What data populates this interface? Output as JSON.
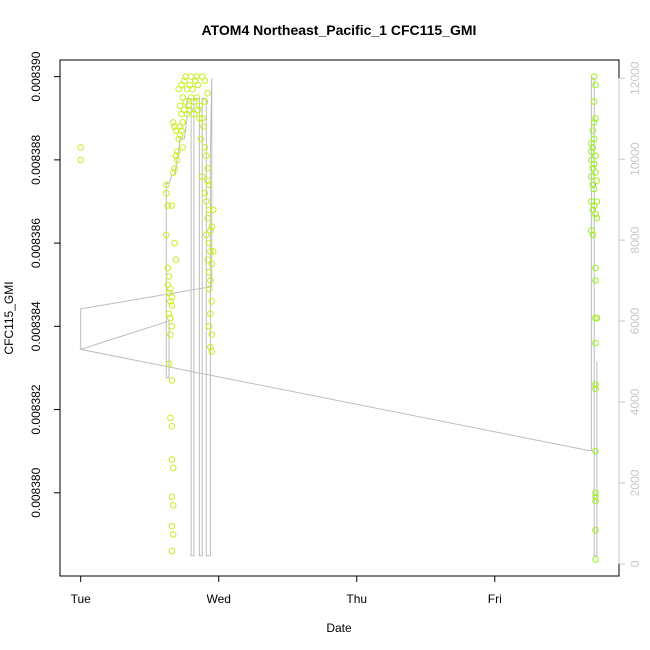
{
  "chart_data": {
    "type": "scatter",
    "title": "ATOM4 Northeast_Pacific_1 CFC115_GMI",
    "xlabel": "Date",
    "ylabel": "CFC115_GMI",
    "x_ticks": [
      "Tue",
      "Wed",
      "Thu",
      "Fri"
    ],
    "x_range_days": [
      -0.15,
      3.9
    ],
    "ylim": [
      0.008378,
      0.0083904
    ],
    "y_ticks": [
      0.00838,
      0.008382,
      0.008384,
      0.008386,
      0.008388,
      0.00839
    ],
    "y_right_lim": [
      -300,
      12450
    ],
    "y_right_ticks": [
      0,
      2000,
      4000,
      6000,
      8000,
      10000,
      12000
    ],
    "grid": false,
    "legend": "none",
    "colors": {
      "points_early": "#c6f01e",
      "points_late": "#9cf01e",
      "line": "#bdbdbd",
      "axis": "#000000",
      "axis_right": "#c8c8c8"
    },
    "series": [
      {
        "type": "scatter",
        "points": [
          [
            0.0,
            0.0083883
          ],
          [
            0.0,
            0.008388
          ],
          [
            0.62,
            0.0083874
          ],
          [
            0.62,
            0.0083872
          ],
          [
            0.63,
            0.0083869
          ],
          [
            0.62,
            0.0083862
          ],
          [
            0.63,
            0.0083854
          ],
          [
            0.64,
            0.0083852
          ],
          [
            0.63,
            0.008385
          ],
          [
            0.65,
            0.0083849
          ],
          [
            0.64,
            0.0083848
          ],
          [
            0.66,
            0.0083847
          ],
          [
            0.65,
            0.0083846
          ],
          [
            0.66,
            0.0083845
          ],
          [
            0.64,
            0.0083843
          ],
          [
            0.65,
            0.0083842
          ],
          [
            0.66,
            0.008384
          ],
          [
            0.65,
            0.0083838
          ],
          [
            0.64,
            0.0083831
          ],
          [
            0.66,
            0.0083827
          ],
          [
            0.65,
            0.0083818
          ],
          [
            0.66,
            0.0083816
          ],
          [
            0.66,
            0.0083808
          ],
          [
            0.67,
            0.0083806
          ],
          [
            0.66,
            0.0083799
          ],
          [
            0.67,
            0.0083797
          ],
          [
            0.66,
            0.0083792
          ],
          [
            0.67,
            0.008379
          ],
          [
            0.66,
            0.0083786
          ],
          [
            0.67,
            0.0083877
          ],
          [
            0.68,
            0.0083878
          ],
          [
            0.69,
            0.0083881
          ],
          [
            0.7,
            0.008388
          ],
          [
            0.7,
            0.0083882
          ],
          [
            0.71,
            0.0083885
          ],
          [
            0.72,
            0.0083886
          ],
          [
            0.72,
            0.0083888
          ],
          [
            0.73,
            0.0083887
          ],
          [
            0.74,
            0.0083889
          ],
          [
            0.74,
            0.0083883
          ],
          [
            0.67,
            0.0083889
          ],
          [
            0.68,
            0.0083888
          ],
          [
            0.69,
            0.0083887
          ],
          [
            0.66,
            0.0083869
          ],
          [
            0.68,
            0.008386
          ],
          [
            0.69,
            0.0083856
          ],
          [
            0.71,
            0.0083897
          ],
          [
            0.73,
            0.0083898
          ],
          [
            0.75,
            0.0083899
          ],
          [
            0.77,
            0.0083897
          ],
          [
            0.79,
            0.0083898
          ],
          [
            0.81,
            0.0083897
          ],
          [
            0.83,
            0.0083899
          ],
          [
            0.85,
            0.0083898
          ],
          [
            0.72,
            0.0083893
          ],
          [
            0.74,
            0.0083895
          ],
          [
            0.76,
            0.0083894
          ],
          [
            0.78,
            0.0083893
          ],
          [
            0.8,
            0.0083895
          ],
          [
            0.82,
            0.0083894
          ],
          [
            0.84,
            0.0083895
          ],
          [
            0.86,
            0.0083893
          ],
          [
            0.73,
            0.0083891
          ],
          [
            0.75,
            0.0083892
          ],
          [
            0.77,
            0.0083891
          ],
          [
            0.79,
            0.0083892
          ],
          [
            0.82,
            0.0083891
          ],
          [
            0.85,
            0.0083892
          ],
          [
            0.88,
            0.008389
          ],
          [
            0.9,
            0.0083894
          ],
          [
            0.76,
            0.00839
          ],
          [
            0.8,
            0.00839
          ],
          [
            0.84,
            0.00839
          ],
          [
            0.88,
            0.00839
          ],
          [
            0.9,
            0.0083899
          ],
          [
            0.92,
            0.0083896
          ],
          [
            0.86,
            0.008389
          ],
          [
            0.89,
            0.0083888
          ],
          [
            0.87,
            0.0083885
          ],
          [
            0.9,
            0.0083883
          ],
          [
            0.91,
            0.0083881
          ],
          [
            0.92,
            0.0083878
          ],
          [
            0.88,
            0.0083876
          ],
          [
            0.92,
            0.0083875
          ],
          [
            0.93,
            0.0083874
          ],
          [
            0.9,
            0.0083872
          ],
          [
            0.91,
            0.008387
          ],
          [
            0.93,
            0.0083868
          ],
          [
            0.92,
            0.0083866
          ],
          [
            0.94,
            0.0083863
          ],
          [
            0.91,
            0.0083862
          ],
          [
            0.93,
            0.008386
          ],
          [
            0.94,
            0.0083858
          ],
          [
            0.92,
            0.0083856
          ],
          [
            0.95,
            0.0083855
          ],
          [
            0.93,
            0.0083853
          ],
          [
            0.94,
            0.0083851
          ],
          [
            0.93,
            0.0083849
          ],
          [
            0.95,
            0.0083846
          ],
          [
            0.94,
            0.0083843
          ],
          [
            0.93,
            0.008384
          ],
          [
            0.95,
            0.0083838
          ],
          [
            0.94,
            0.0083835
          ],
          [
            0.95,
            0.0083834
          ],
          [
            0.96,
            0.0083868
          ],
          [
            0.95,
            0.0083864
          ],
          [
            0.96,
            0.0083858
          ]
        ]
      },
      {
        "type": "scatter",
        "points": [
          [
            3.72,
            0.00839
          ],
          [
            3.73,
            0.0083898
          ],
          [
            3.72,
            0.0083894
          ],
          [
            3.73,
            0.008389
          ],
          [
            3.72,
            0.0083889
          ],
          [
            3.71,
            0.0083887
          ],
          [
            3.72,
            0.0083885
          ],
          [
            3.7,
            0.0083884
          ],
          [
            3.71,
            0.0083883
          ],
          [
            3.7,
            0.0083882
          ],
          [
            3.73,
            0.0083881
          ],
          [
            3.7,
            0.008388
          ],
          [
            3.72,
            0.0083879
          ],
          [
            3.71,
            0.0083878
          ],
          [
            3.73,
            0.0083877
          ],
          [
            3.7,
            0.0083876
          ],
          [
            3.74,
            0.0083875
          ],
          [
            3.71,
            0.0083874
          ],
          [
            3.72,
            0.0083873
          ],
          [
            3.7,
            0.008387
          ],
          [
            3.72,
            0.0083869
          ],
          [
            3.74,
            0.008387
          ],
          [
            3.71,
            0.0083868
          ],
          [
            3.73,
            0.0083867
          ],
          [
            3.74,
            0.0083866
          ],
          [
            3.7,
            0.0083863
          ],
          [
            3.71,
            0.0083862
          ],
          [
            3.73,
            0.0083854
          ],
          [
            3.73,
            0.0083851
          ],
          [
            3.73,
            0.0083842
          ],
          [
            3.74,
            0.0083842
          ],
          [
            3.73,
            0.0083836
          ],
          [
            3.73,
            0.0083826
          ],
          [
            3.73,
            0.0083825
          ],
          [
            3.73,
            0.008381
          ],
          [
            3.73,
            0.00838
          ],
          [
            3.73,
            0.0083799
          ],
          [
            3.73,
            0.0083798
          ],
          [
            3.73,
            0.0083791
          ],
          [
            3.73,
            0.0083784
          ]
        ]
      },
      {
        "type": "line",
        "points": [
          [
            0.0,
            5300
          ],
          [
            0.0,
            6300
          ],
          [
            0.95,
            6850
          ],
          [
            0.95,
            12000
          ],
          [
            0.94,
            10200
          ],
          [
            0.94,
            200
          ],
          [
            0.91,
            200
          ],
          [
            0.91,
            11500
          ],
          [
            0.88,
            11500
          ],
          [
            0.88,
            200
          ],
          [
            0.86,
            200
          ],
          [
            0.86,
            11500
          ],
          [
            0.82,
            11500
          ],
          [
            0.82,
            200
          ],
          [
            0.8,
            200
          ],
          [
            0.8,
            11500
          ],
          [
            0.77,
            11500
          ],
          [
            0.77,
            11000
          ],
          [
            0.75,
            10500
          ],
          [
            0.72,
            10500
          ],
          [
            0.7,
            10000
          ],
          [
            0.68,
            9600
          ],
          [
            0.66,
            9600
          ],
          [
            0.64,
            9400
          ],
          [
            0.62,
            9400
          ],
          [
            0.62,
            4600
          ],
          [
            0.64,
            4600
          ],
          [
            0.64,
            6000
          ],
          [
            0.0,
            5300
          ],
          [
            3.68,
            2800
          ],
          [
            3.7,
            2800
          ],
          [
            3.7,
            12000
          ],
          [
            3.72,
            12000
          ],
          [
            3.72,
            200
          ],
          [
            3.74,
            200
          ],
          [
            3.74,
            5000
          ]
        ]
      }
    ]
  }
}
